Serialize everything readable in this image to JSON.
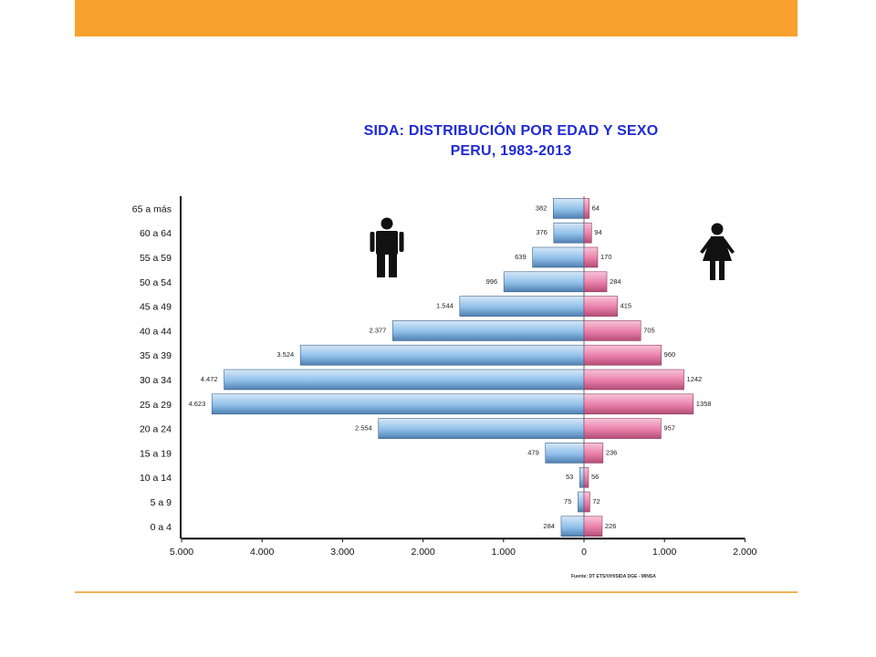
{
  "colors": {
    "top_bar": "#f9a12e",
    "bottom_line": "#f0b35a",
    "title": "#1f2ad6",
    "male_bar": "#a9cdef",
    "female_bar": "#ec8cb2"
  },
  "icons": {
    "male": "man-icon",
    "female": "woman-icon"
  },
  "chart_data": {
    "type": "bar",
    "orientation": "horizontal-pyramid",
    "title": "SIDA: DISTRIBUCIÓN POR EDAD Y SEXO",
    "subtitle": "PERU, 1983-2013",
    "categories": [
      "65 a más",
      "60 a 64",
      "55 a 59",
      "50 a 54",
      "45 a 49",
      "40 a 44",
      "35 a 39",
      "30 a 34",
      "25 a 29",
      "20 a 24",
      "15 a 19",
      "10 a 14",
      "5 a 9",
      "0 a 4"
    ],
    "series": [
      {
        "values": [
          382,
          376,
          639,
          996,
          1544,
          2377,
          3524,
          4472,
          4623,
          2554,
          479,
          53,
          75,
          284
        ],
        "labels": [
          "382",
          "376",
          "639",
          "996",
          "1.544",
          "2.377",
          "3.524",
          "4.472",
          "4.623",
          "2.554",
          "479",
          "53",
          "75",
          "284"
        ]
      },
      {
        "values": [
          64,
          94,
          170,
          284,
          415,
          705,
          960,
          1242,
          1358,
          957,
          236,
          56,
          72,
          226
        ],
        "labels": [
          "64",
          "94",
          "170",
          "284",
          "415",
          "705",
          "960",
          "1242",
          "1358",
          "957",
          "236",
          "56",
          "72",
          "226"
        ]
      }
    ],
    "x_ticks": [
      "5.000",
      "4.000",
      "3.000",
      "2.000",
      "1.000",
      "0",
      "1.000",
      "2.000"
    ],
    "xlim": [
      -5000,
      2000
    ],
    "source": "Fuente: DT ETS/VIH/SIDA DGE - MINSA"
  }
}
